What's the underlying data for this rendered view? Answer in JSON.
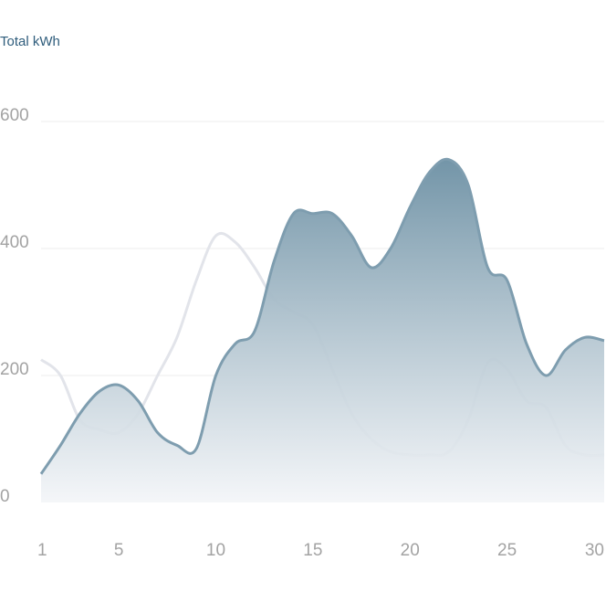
{
  "chart_data": {
    "type": "area",
    "ylabel": "Total kWh",
    "xlabel": "",
    "title": "",
    "ylim": [
      0,
      600
    ],
    "xlim": [
      1,
      30
    ],
    "y_ticks": [
      0,
      200,
      400,
      600
    ],
    "x_ticks": [
      1,
      5,
      10,
      15,
      20,
      25,
      30
    ],
    "grid": true,
    "legend": "none",
    "series": [
      {
        "role": "primary",
        "style": "area",
        "color": "#7e9daf",
        "x": [
          1,
          2,
          3,
          4,
          5,
          6,
          7,
          8,
          9,
          10,
          11,
          12,
          13,
          14,
          15,
          16,
          17,
          18,
          19,
          20,
          21,
          22,
          23,
          24,
          25,
          26,
          27,
          28,
          29,
          30
        ],
        "values": [
          45,
          90,
          140,
          175,
          185,
          160,
          110,
          90,
          85,
          200,
          250,
          270,
          380,
          455,
          455,
          455,
          420,
          370,
          400,
          465,
          520,
          540,
          500,
          370,
          350,
          250,
          200,
          240,
          260,
          255
        ]
      },
      {
        "role": "comparison",
        "style": "line",
        "color": "#e2e4ea",
        "x": [
          1,
          2,
          3,
          4,
          5,
          6,
          7,
          8,
          9,
          10,
          11,
          12,
          13,
          14,
          15,
          16,
          17,
          18,
          19,
          20,
          21,
          22,
          23,
          24,
          25,
          26,
          27,
          28,
          29,
          30
        ],
        "values": [
          225,
          200,
          130,
          115,
          110,
          140,
          200,
          260,
          350,
          420,
          410,
          370,
          320,
          300,
          280,
          210,
          140,
          100,
          80,
          75,
          75,
          80,
          130,
          220,
          210,
          160,
          150,
          90,
          75,
          75
        ]
      }
    ],
    "colors": {
      "tick_label": "#a3a3a3",
      "ylabel": "#2f5d7c",
      "grid": "#ececec",
      "area_top": "#7395a8",
      "area_bottom": "#f3f5f8"
    }
  }
}
